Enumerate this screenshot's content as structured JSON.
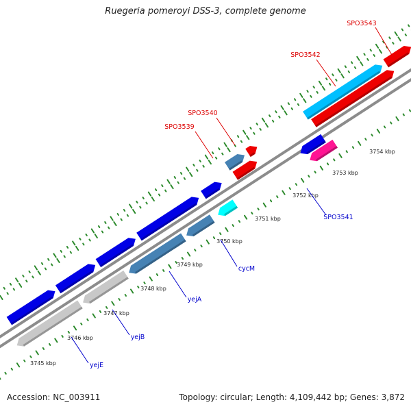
{
  "title": "Ruegeria pomeroyi DSS-3, complete genome",
  "footer": {
    "accession": "Accession: NC_003911",
    "summary": "Topology: circular; Length: 4,109,442 bp; Genes: 3,872"
  },
  "colors": {
    "background": "#ffffff",
    "backbone": "#8c8c8c",
    "tick": "#2e8b2e",
    "forward_label": "#dd0000",
    "reverse_label": "#0000cc",
    "blue_gene": "#0000e6",
    "steel_gene": "#4682b4",
    "red_gene": "#ee0000",
    "sky_gene": "#00bfff",
    "cyan_gene": "#00ffff",
    "pink_gene": "#ff1493",
    "grey_gene": "#c8c8c8"
  },
  "scale_labels": [
    "3745 kbp",
    "3746 kbp",
    "3747 kbp",
    "3748 kbp",
    "3749 kbp",
    "3750 kbp",
    "3751 kbp",
    "3752 kbp",
    "3753 kbp",
    "3754 kbp"
  ],
  "gene_labels": [
    {
      "label": "SPO3543",
      "strand": "forward"
    },
    {
      "label": "SPO3542",
      "strand": "forward"
    },
    {
      "label": "SPO3540",
      "strand": "forward"
    },
    {
      "label": "SPO3539",
      "strand": "forward"
    },
    {
      "label": "SPO3541",
      "strand": "reverse"
    },
    {
      "label": "cycM",
      "strand": "reverse"
    },
    {
      "label": "yejA",
      "strand": "reverse"
    },
    {
      "label": "yejB",
      "strand": "reverse"
    },
    {
      "label": "yejE",
      "strand": "reverse"
    }
  ]
}
